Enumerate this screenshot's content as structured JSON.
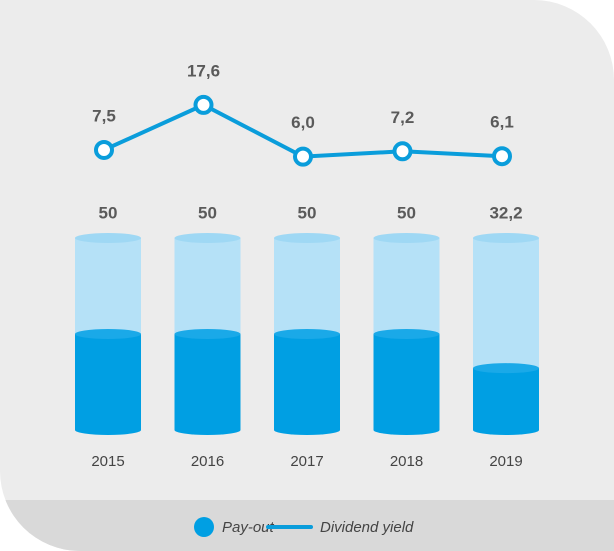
{
  "chart_data": {
    "type": "bar",
    "categories": [
      "2015",
      "2016",
      "2017",
      "2018",
      "2019"
    ],
    "ylim": [
      0,
      100
    ],
    "y2lim": [
      0,
      20
    ],
    "legend": "bottom",
    "series": [
      {
        "name": "Pay-out",
        "type": "bar",
        "color": "#009fe3",
        "values": [
          50,
          50,
          50,
          50,
          32.2
        ],
        "value_labels": [
          "50",
          "50",
          "50",
          "50",
          "32,2"
        ]
      },
      {
        "name": "Dividend yield",
        "type": "line",
        "axis": "y2",
        "color": "#0a9ddb",
        "values": [
          7.5,
          17.6,
          6.0,
          7.2,
          6.1
        ],
        "value_labels": [
          "7,5",
          "17,6",
          "6,0",
          "7,2",
          "6,1"
        ]
      }
    ]
  }
}
